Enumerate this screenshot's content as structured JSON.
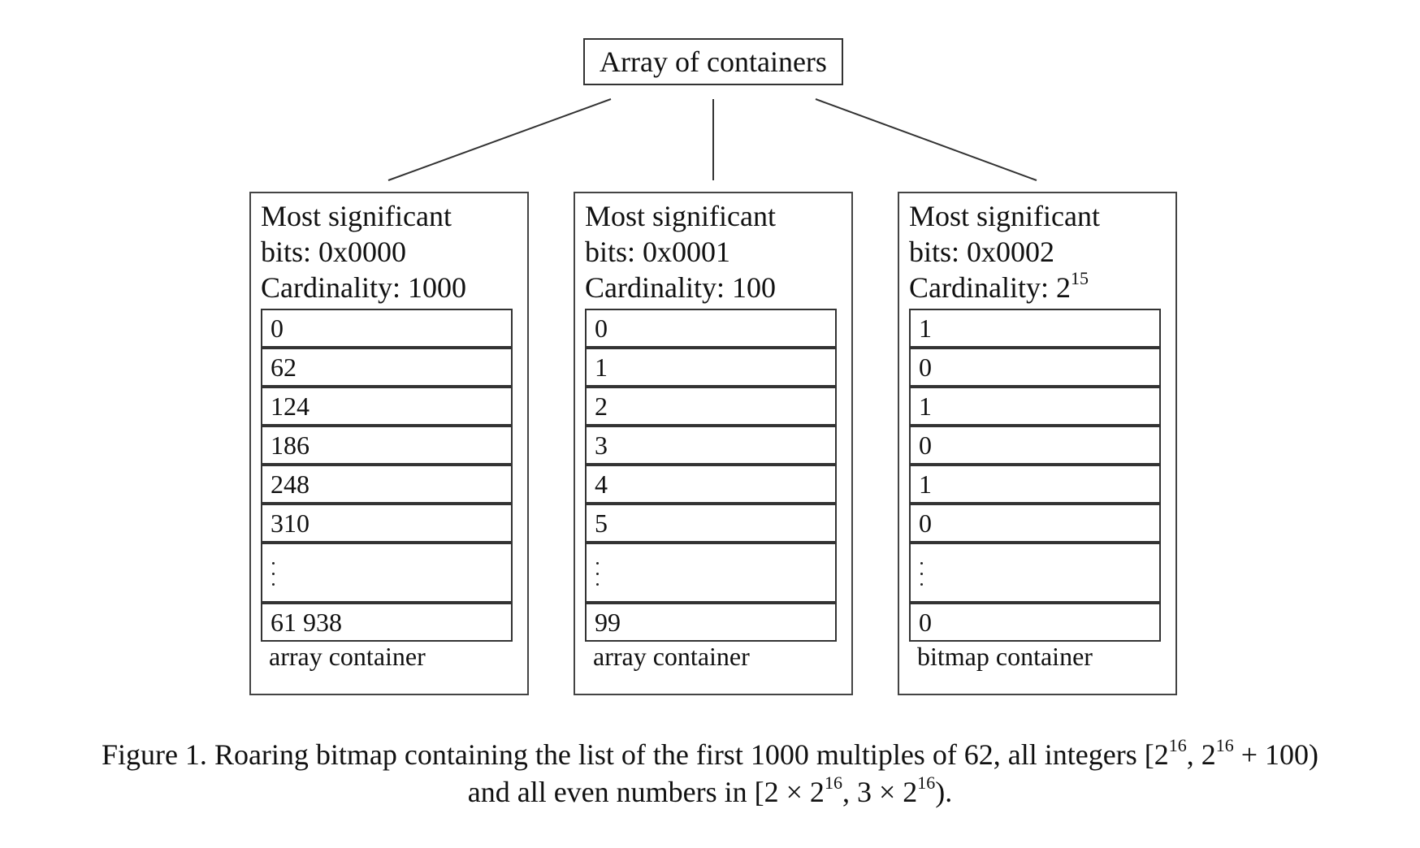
{
  "root_label": "Array of containers",
  "containers": [
    {
      "header_line1": "Most significant",
      "header_line2": "bits: 0x0000",
      "cardinality_label": "Cardinality: ",
      "cardinality_value": "1000",
      "cardinality_exp": "",
      "cells_top": [
        "0",
        "62",
        "124",
        "186",
        "248",
        "310"
      ],
      "cell_last": "61 938",
      "type_label": "array container"
    },
    {
      "header_line1": "Most significant",
      "header_line2": "bits: 0x0001",
      "cardinality_label": "Cardinality: ",
      "cardinality_value": "100",
      "cardinality_exp": "",
      "cells_top": [
        "0",
        "1",
        "2",
        "3",
        "4",
        "5"
      ],
      "cell_last": "99",
      "type_label": "array container"
    },
    {
      "header_line1": "Most significant",
      "header_line2": "bits: 0x0002",
      "cardinality_label": "Cardinality: ",
      "cardinality_value": "2",
      "cardinality_exp": "15",
      "cells_top": [
        "1",
        "0",
        "1",
        "0",
        "1",
        "0"
      ],
      "cell_last": "0",
      "type_label": "bitmap container"
    }
  ],
  "caption": {
    "figure_label": "Figure 1.",
    "line1_text": "Roaring bitmap containing the list of the first 1000 multiples of 62, all integers [2",
    "line1_exp1": "16",
    "line1_mid": ", 2",
    "line1_exp2": "16",
    "line1_end": " + 100)",
    "line2_text": "and all even numbers in [2 × 2",
    "line2_exp1": "16",
    "line2_mid": ", 3 × 2",
    "line2_exp2": "16",
    "line2_end": ")."
  }
}
